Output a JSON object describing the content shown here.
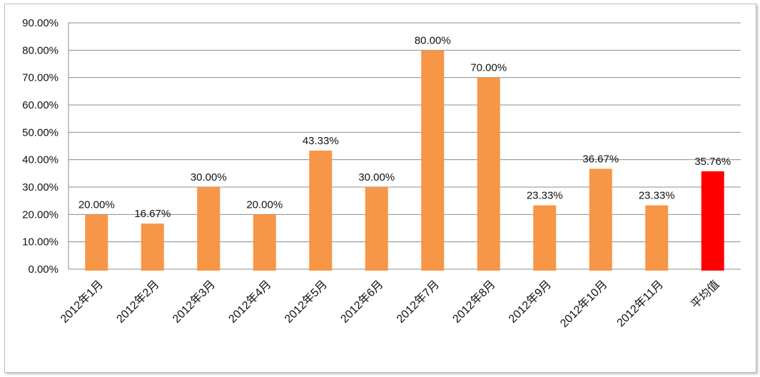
{
  "chart_data": {
    "type": "bar",
    "title": "",
    "xlabel": "",
    "ylabel": "",
    "ylim": [
      0,
      90
    ],
    "yticks": [
      "0.00%",
      "10.00%",
      "20.00%",
      "30.00%",
      "40.00%",
      "50.00%",
      "60.00%",
      "70.00%",
      "80.00%",
      "90.00%"
    ],
    "grid": true,
    "legend": "none",
    "categories": [
      "2012年1月",
      "2012年2月",
      "2012年3月",
      "2012年4月",
      "2012年5月",
      "2012年6月",
      "2012年7月",
      "2012年8月",
      "2012年9月",
      "2012年10月",
      "2012年11月",
      "平均值"
    ],
    "values": [
      20.0,
      16.67,
      30.0,
      20.0,
      43.33,
      30.0,
      80.0,
      70.0,
      23.33,
      36.67,
      23.33,
      35.76
    ],
    "data_labels": [
      "20.00%",
      "16.67%",
      "30.00%",
      "20.00%",
      "43.33%",
      "30.00%",
      "80.00%",
      "70.00%",
      "23.33%",
      "36.67%",
      "23.33%",
      "35.76%"
    ],
    "colors": {
      "bar": "#f79646",
      "highlight": "#ff0000",
      "grid": "#8c8c8c"
    },
    "highlight_index": 11
  }
}
